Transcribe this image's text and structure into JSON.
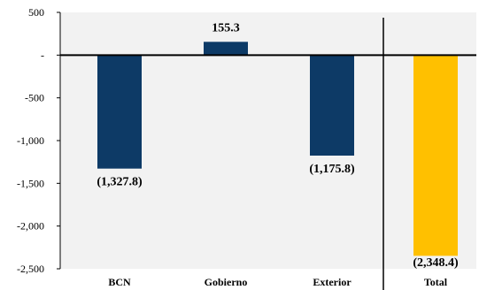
{
  "chart_data": {
    "type": "bar",
    "categories": [
      "BCN",
      "Gobierno",
      "Exterior",
      "Total"
    ],
    "values": [
      -1327.8,
      155.3,
      -1175.8,
      -2348.4
    ],
    "data_labels": [
      "(1,327.8)",
      "155.3",
      "(1,175.8)",
      "(2,348.4)"
    ],
    "bar_colors": [
      "#0d3a66",
      "#0d3a66",
      "#0d3a66",
      "#ffc000"
    ],
    "title": "",
    "xlabel": "",
    "ylabel": "",
    "ylim": [
      -2500,
      500
    ],
    "y_ticks": [
      500,
      0,
      -500,
      -1000,
      -1500,
      -2000,
      -2500
    ],
    "y_tick_labels": [
      "500",
      "-",
      "-500",
      "-1,000",
      "-1,500",
      "-2,000",
      "-2,500"
    ],
    "plot_background": "#f2f2f2",
    "grid": false,
    "legend": "none",
    "separator_before_category": "Total"
  }
}
